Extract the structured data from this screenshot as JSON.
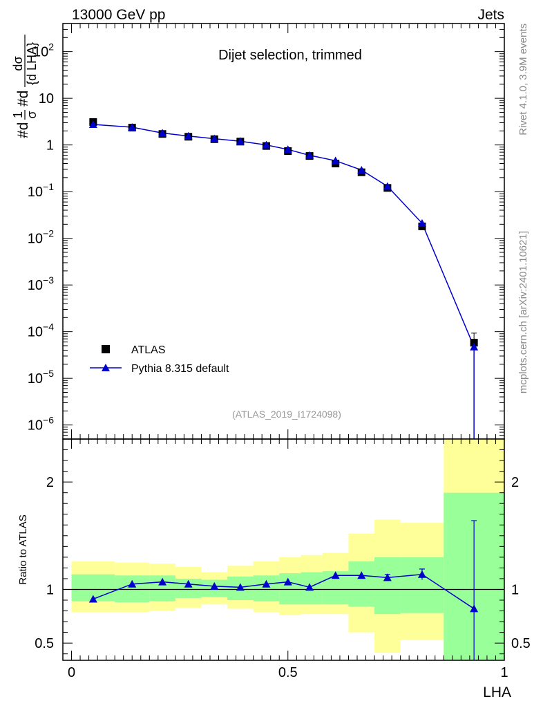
{
  "header": {
    "left": "13000 GeV pp",
    "right": "Jets"
  },
  "side_labels": {
    "rivet": "Rivet 4.1.0,  3.9M events",
    "mcplots": "mcplots.cern.ch [arXiv:2401.10621]"
  },
  "chart_data": [
    {
      "type": "scatter",
      "panel": "main",
      "title": "Dijet selection, trimmed",
      "ylabel": "1/σ dσ/d LHA",
      "ylabel_parts": {
        "frac1_num": "1",
        "frac1_den": "σ",
        "frac2_num": "dσ",
        "frac2_den": "d LHA",
        "prefix1": "#d",
        "prefix2": "#d"
      },
      "yscale": "log",
      "xlim": [
        -0.02,
        1.0
      ],
      "ylim": [
        5e-07,
        400
      ],
      "y_ticks": [
        {
          "value": 1e-06,
          "base": "10",
          "exp": "−6"
        },
        {
          "value": 1e-05,
          "base": "10",
          "exp": "−5"
        },
        {
          "value": 0.0001,
          "base": "10",
          "exp": "−4"
        },
        {
          "value": 0.001,
          "base": "10",
          "exp": "−3"
        },
        {
          "value": 0.01,
          "base": "10",
          "exp": "−2"
        },
        {
          "value": 0.1,
          "base": "10",
          "exp": "−1"
        },
        {
          "value": 1,
          "base": "1",
          "exp": ""
        },
        {
          "value": 10,
          "base": "10",
          "exp": ""
        },
        {
          "value": 100,
          "base": "10",
          "exp": "2"
        }
      ],
      "series": [
        {
          "name": "ATLAS",
          "marker": "square",
          "color": "#000000",
          "x": [
            0.05,
            0.14,
            0.21,
            0.27,
            0.33,
            0.39,
            0.45,
            0.5,
            0.55,
            0.61,
            0.67,
            0.73,
            0.81,
            0.93
          ],
          "y": [
            3.1,
            2.35,
            1.72,
            1.5,
            1.33,
            1.18,
            0.95,
            0.74,
            0.58,
            0.4,
            0.26,
            0.12,
            0.018,
            5.8e-05
          ],
          "yerr_lo": [
            0.25,
            0.15,
            0.1,
            0.08,
            0.07,
            0.06,
            0.05,
            0.04,
            0.03,
            0.025,
            0.02,
            0.01,
            0.002,
            1.4e-05
          ],
          "yerr_hi": [
            0.25,
            0.15,
            0.1,
            0.08,
            0.07,
            0.06,
            0.05,
            0.04,
            0.03,
            0.025,
            0.02,
            0.01,
            0.002,
            3.5e-05
          ]
        },
        {
          "name": "Pythia 8.315 default",
          "marker": "triangle",
          "color": "#0000cc",
          "x": [
            0.05,
            0.14,
            0.21,
            0.27,
            0.33,
            0.39,
            0.45,
            0.5,
            0.55,
            0.61,
            0.67,
            0.73,
            0.81,
            0.93
          ],
          "y": [
            2.75,
            2.4,
            1.8,
            1.55,
            1.36,
            1.2,
            1.0,
            0.8,
            0.6,
            0.46,
            0.29,
            0.13,
            0.021,
            4.7e-05
          ]
        }
      ],
      "legend": {
        "position": "bottom-left",
        "entries": [
          "ATLAS",
          "Pythia 8.315 default"
        ]
      },
      "annotation": "(ATLAS_2019_I1724098)"
    },
    {
      "type": "line",
      "panel": "ratio",
      "ylabel": "Ratio to ATLAS",
      "xlabel": "LHA",
      "xlim": [
        -0.02,
        1.0
      ],
      "ylim": [
        0.34,
        2.4
      ],
      "y_ticks": [
        0.5,
        1,
        2
      ],
      "y_tick_labels": [
        "0.5",
        "1",
        "2"
      ],
      "x_ticks": [
        0,
        0.5,
        1
      ],
      "x_tick_labels": [
        "0",
        "0.5",
        "1"
      ],
      "reference_line": 1,
      "bands": {
        "edges": [
          0,
          0.1,
          0.18,
          0.24,
          0.3,
          0.36,
          0.42,
          0.48,
          0.53,
          0.58,
          0.64,
          0.7,
          0.76,
          0.86,
          1.0
        ],
        "yellow_lo": [
          0.79,
          0.79,
          0.8,
          0.83,
          0.86,
          0.82,
          0.79,
          0.76,
          0.77,
          0.77,
          0.6,
          0.41,
          0.53,
          0.34
        ],
        "yellow_hi": [
          1.26,
          1.25,
          1.24,
          1.21,
          1.16,
          1.22,
          1.26,
          1.3,
          1.32,
          1.34,
          1.52,
          1.65,
          1.62,
          2.4
        ],
        "green_lo": [
          0.89,
          0.88,
          0.89,
          0.92,
          0.93,
          0.9,
          0.89,
          0.86,
          0.86,
          0.86,
          0.84,
          0.77,
          0.78,
          0.34
        ],
        "green_hi": [
          1.14,
          1.13,
          1.13,
          1.1,
          1.09,
          1.12,
          1.13,
          1.15,
          1.16,
          1.17,
          1.26,
          1.3,
          1.3,
          1.9
        ],
        "yellow_color": "#ffff99",
        "green_color": "#99ff99"
      },
      "series": [
        {
          "name": "Pythia 8.315 default / ATLAS",
          "color": "#0000cc",
          "x": [
            0.05,
            0.14,
            0.21,
            0.27,
            0.33,
            0.39,
            0.45,
            0.5,
            0.55,
            0.61,
            0.67,
            0.73,
            0.81,
            0.93
          ],
          "y": [
            0.91,
            1.05,
            1.07,
            1.05,
            1.03,
            1.02,
            1.05,
            1.07,
            1.02,
            1.13,
            1.13,
            1.11,
            1.14,
            0.82
          ],
          "yerr_lo": [
            0.01,
            0.01,
            0.01,
            0.01,
            0.01,
            0.01,
            0.01,
            0.01,
            0.01,
            0.01,
            0.01,
            0.03,
            0.05,
            0.6
          ],
          "yerr_hi": [
            0.01,
            0.01,
            0.01,
            0.01,
            0.01,
            0.01,
            0.01,
            0.01,
            0.01,
            0.01,
            0.01,
            0.03,
            0.05,
            0.82
          ]
        }
      ]
    }
  ]
}
